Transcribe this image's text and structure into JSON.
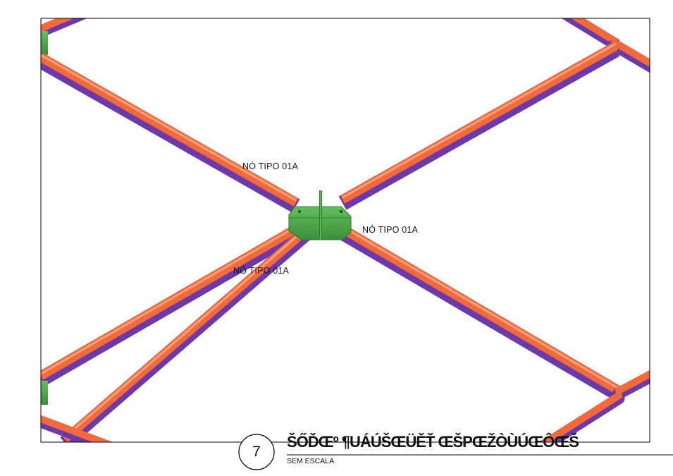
{
  "labels": {
    "node_top": "NÓ TIPO 01A",
    "node_right": "NÓ TIPO 01A",
    "node_left": "NÓ TIPO 01A"
  },
  "title_block": {
    "detail_number": "7",
    "title": "ŠŐĎŒº ¶UÁÚŠŒÜĚŤ ŒŠPŒŽÒÙÚŒÔŒŠ",
    "scale": "SEM ESCALA"
  },
  "colors": {
    "tube_orange": "#f26a3a",
    "tube_purple": "#7a3fa0",
    "node_plate": "#4ba34b",
    "node_plate_dark": "#2f7a2f",
    "frame": "#000000"
  }
}
